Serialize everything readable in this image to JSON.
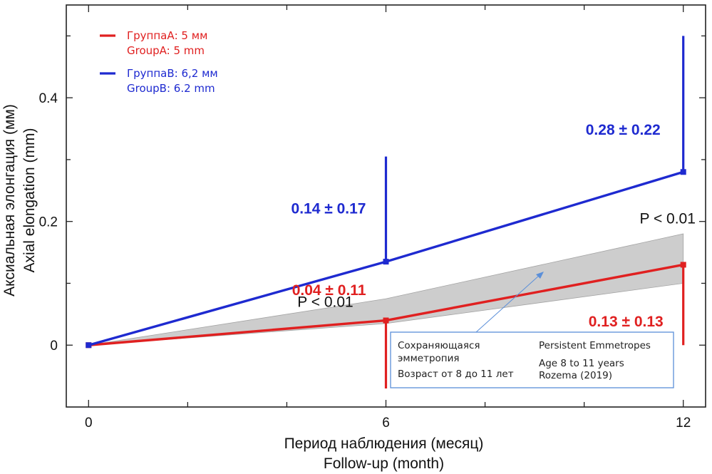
{
  "chart_data": {
    "type": "line",
    "xlabel_lines": [
      "Период наблюдения (месяц)",
      "Follow-up (month)"
    ],
    "ylabel_lines": [
      "Аксиальная элонгация (мм)",
      "Axial elongation (mm)"
    ],
    "x_ticks": [
      0,
      6,
      12
    ],
    "y_ticks": [
      {
        "value": 0,
        "label": "0"
      },
      {
        "value": 0.2,
        "label": "0.2"
      },
      {
        "value": 0.4,
        "label": "0.4"
      }
    ],
    "xlim": [
      -0.45,
      12.45
    ],
    "ylim": [
      -0.1,
      0.55
    ],
    "grid": false,
    "legend": {
      "placement": "top-left",
      "entries": [
        {
          "lines": [
            "ГруппаА: 5 мм",
            "GroupA: 5 mm"
          ],
          "color": "#e02020"
        },
        {
          "lines": [
            "ГруппаВ: 6,2 мм",
            "GroupB: 6.2 mm"
          ],
          "color": "#1e2ad0"
        }
      ]
    },
    "series": [
      {
        "color": "#e02020",
        "x": [
          0,
          6,
          12
        ],
        "y": [
          0.0,
          0.04,
          0.13
        ],
        "error_bars": [
          {
            "x": 6,
            "low": -0.07,
            "high": 0.04
          },
          {
            "x": 12,
            "low": 0.0,
            "high": 0.13
          }
        ],
        "point_labels": [
          {
            "x": 6,
            "text": "0.04 ± 0.11"
          },
          {
            "x": 12,
            "text": "0.13 ± 0.13"
          }
        ]
      },
      {
        "color": "#1e2ad0",
        "x": [
          0,
          6,
          12
        ],
        "y": [
          0.0,
          0.135,
          0.28
        ],
        "error_bars": [
          {
            "x": 6,
            "low": 0.135,
            "high": 0.305
          },
          {
            "x": 12,
            "low": 0.28,
            "high": 0.5
          }
        ],
        "point_labels": [
          {
            "x": 6,
            "text": "0.14 ± 0.17"
          },
          {
            "x": 12,
            "text": "0.28 ± 0.22"
          }
        ]
      }
    ],
    "band": {
      "color": "#c8c8c8",
      "x": [
        0,
        6,
        12
      ],
      "upper": [
        0.0,
        0.075,
        0.18
      ],
      "lower": [
        0.0,
        0.035,
        0.1
      ]
    },
    "annotations": [
      {
        "x": 6,
        "y": 0.04,
        "text": "P < 0.01"
      },
      {
        "x": 12,
        "y": 0.13,
        "text": "P < 0.01"
      }
    ],
    "note_box": {
      "left_lines": [
        "Сохраняющаяся",
        "эмметропия",
        "Возраст от 8 до 11 лет"
      ],
      "right_lines": [
        "Persistent Emmetropes",
        "Age 8 to 11 years",
        "Rozema (2019)"
      ],
      "border_color": "#5b8fd9"
    }
  }
}
